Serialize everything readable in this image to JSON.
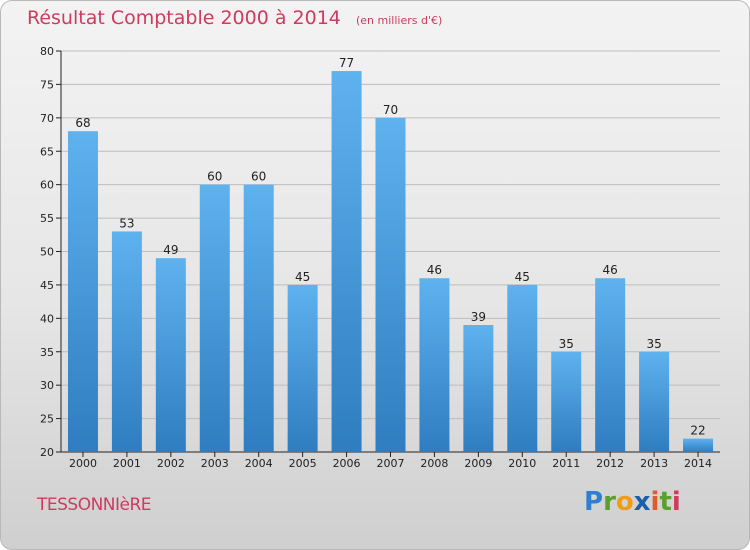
{
  "title": "Résultat Comptable 2000 à 2014",
  "subtitle": "(en milliers d'€)",
  "commune": "TESSONNIèRE",
  "logo": {
    "text": "Proxiti",
    "letters": [
      {
        "char": "P",
        "color": "#2e7fcf"
      },
      {
        "char": "r",
        "color": "#5aa02c"
      },
      {
        "char": "o",
        "color": "#f39c12"
      },
      {
        "char": "x",
        "color": "#1a5fa8"
      },
      {
        "char": "i",
        "color": "#e05a2a"
      },
      {
        "char": "t",
        "color": "#5aa02c"
      },
      {
        "char": "i",
        "color": "#d03a5f"
      }
    ]
  },
  "colors": {
    "title": "#d03a5f",
    "bar_top": "#5eb2ee",
    "bar_bottom": "#2f7dc0",
    "grid": "#bdbdbd",
    "axis": "#222222"
  },
  "chart_data": {
    "type": "bar",
    "categories": [
      "2000",
      "2001",
      "2002",
      "2003",
      "2004",
      "2005",
      "2006",
      "2007",
      "2008",
      "2009",
      "2010",
      "2011",
      "2012",
      "2013",
      "2014"
    ],
    "values": [
      68,
      53,
      49,
      60,
      60,
      45,
      77,
      70,
      46,
      39,
      45,
      35,
      46,
      35,
      22
    ],
    "ylim": [
      20,
      80
    ],
    "yticks": [
      20,
      25,
      30,
      35,
      40,
      45,
      50,
      55,
      60,
      65,
      70,
      75,
      80
    ],
    "grid": true,
    "xlabel": "",
    "ylabel": ""
  }
}
